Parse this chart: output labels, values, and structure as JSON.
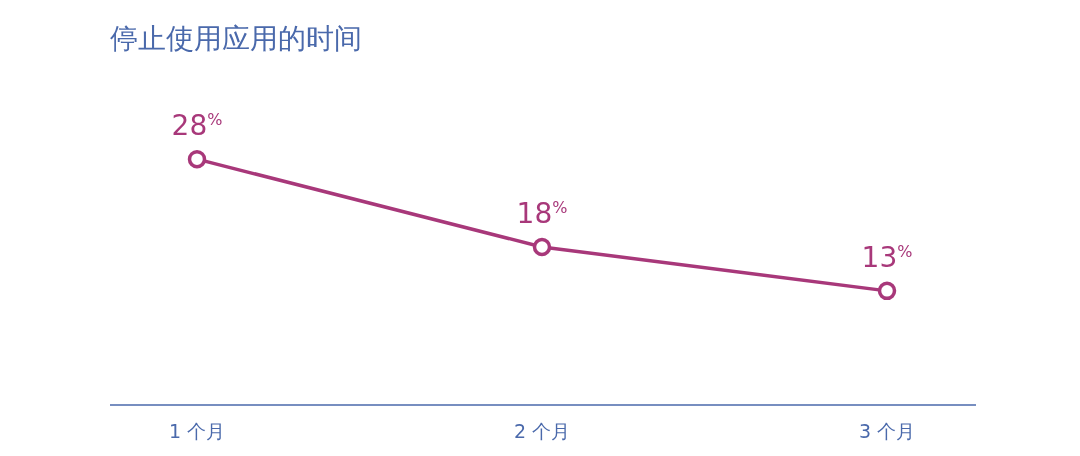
{
  "chart_data": {
    "type": "line",
    "title": "停止使用应用的时间",
    "categories": [
      "1 个月",
      "2 个月",
      "3 个月"
    ],
    "series": [
      {
        "color": "#a8387a",
        "values": [
          28,
          18,
          13
        ],
        "value_labels": [
          "28$^{%}$",
          "18$^{%}$",
          "13$^{%}$"
        ]
      }
    ],
    "marker": "circle",
    "grid": false
  }
}
